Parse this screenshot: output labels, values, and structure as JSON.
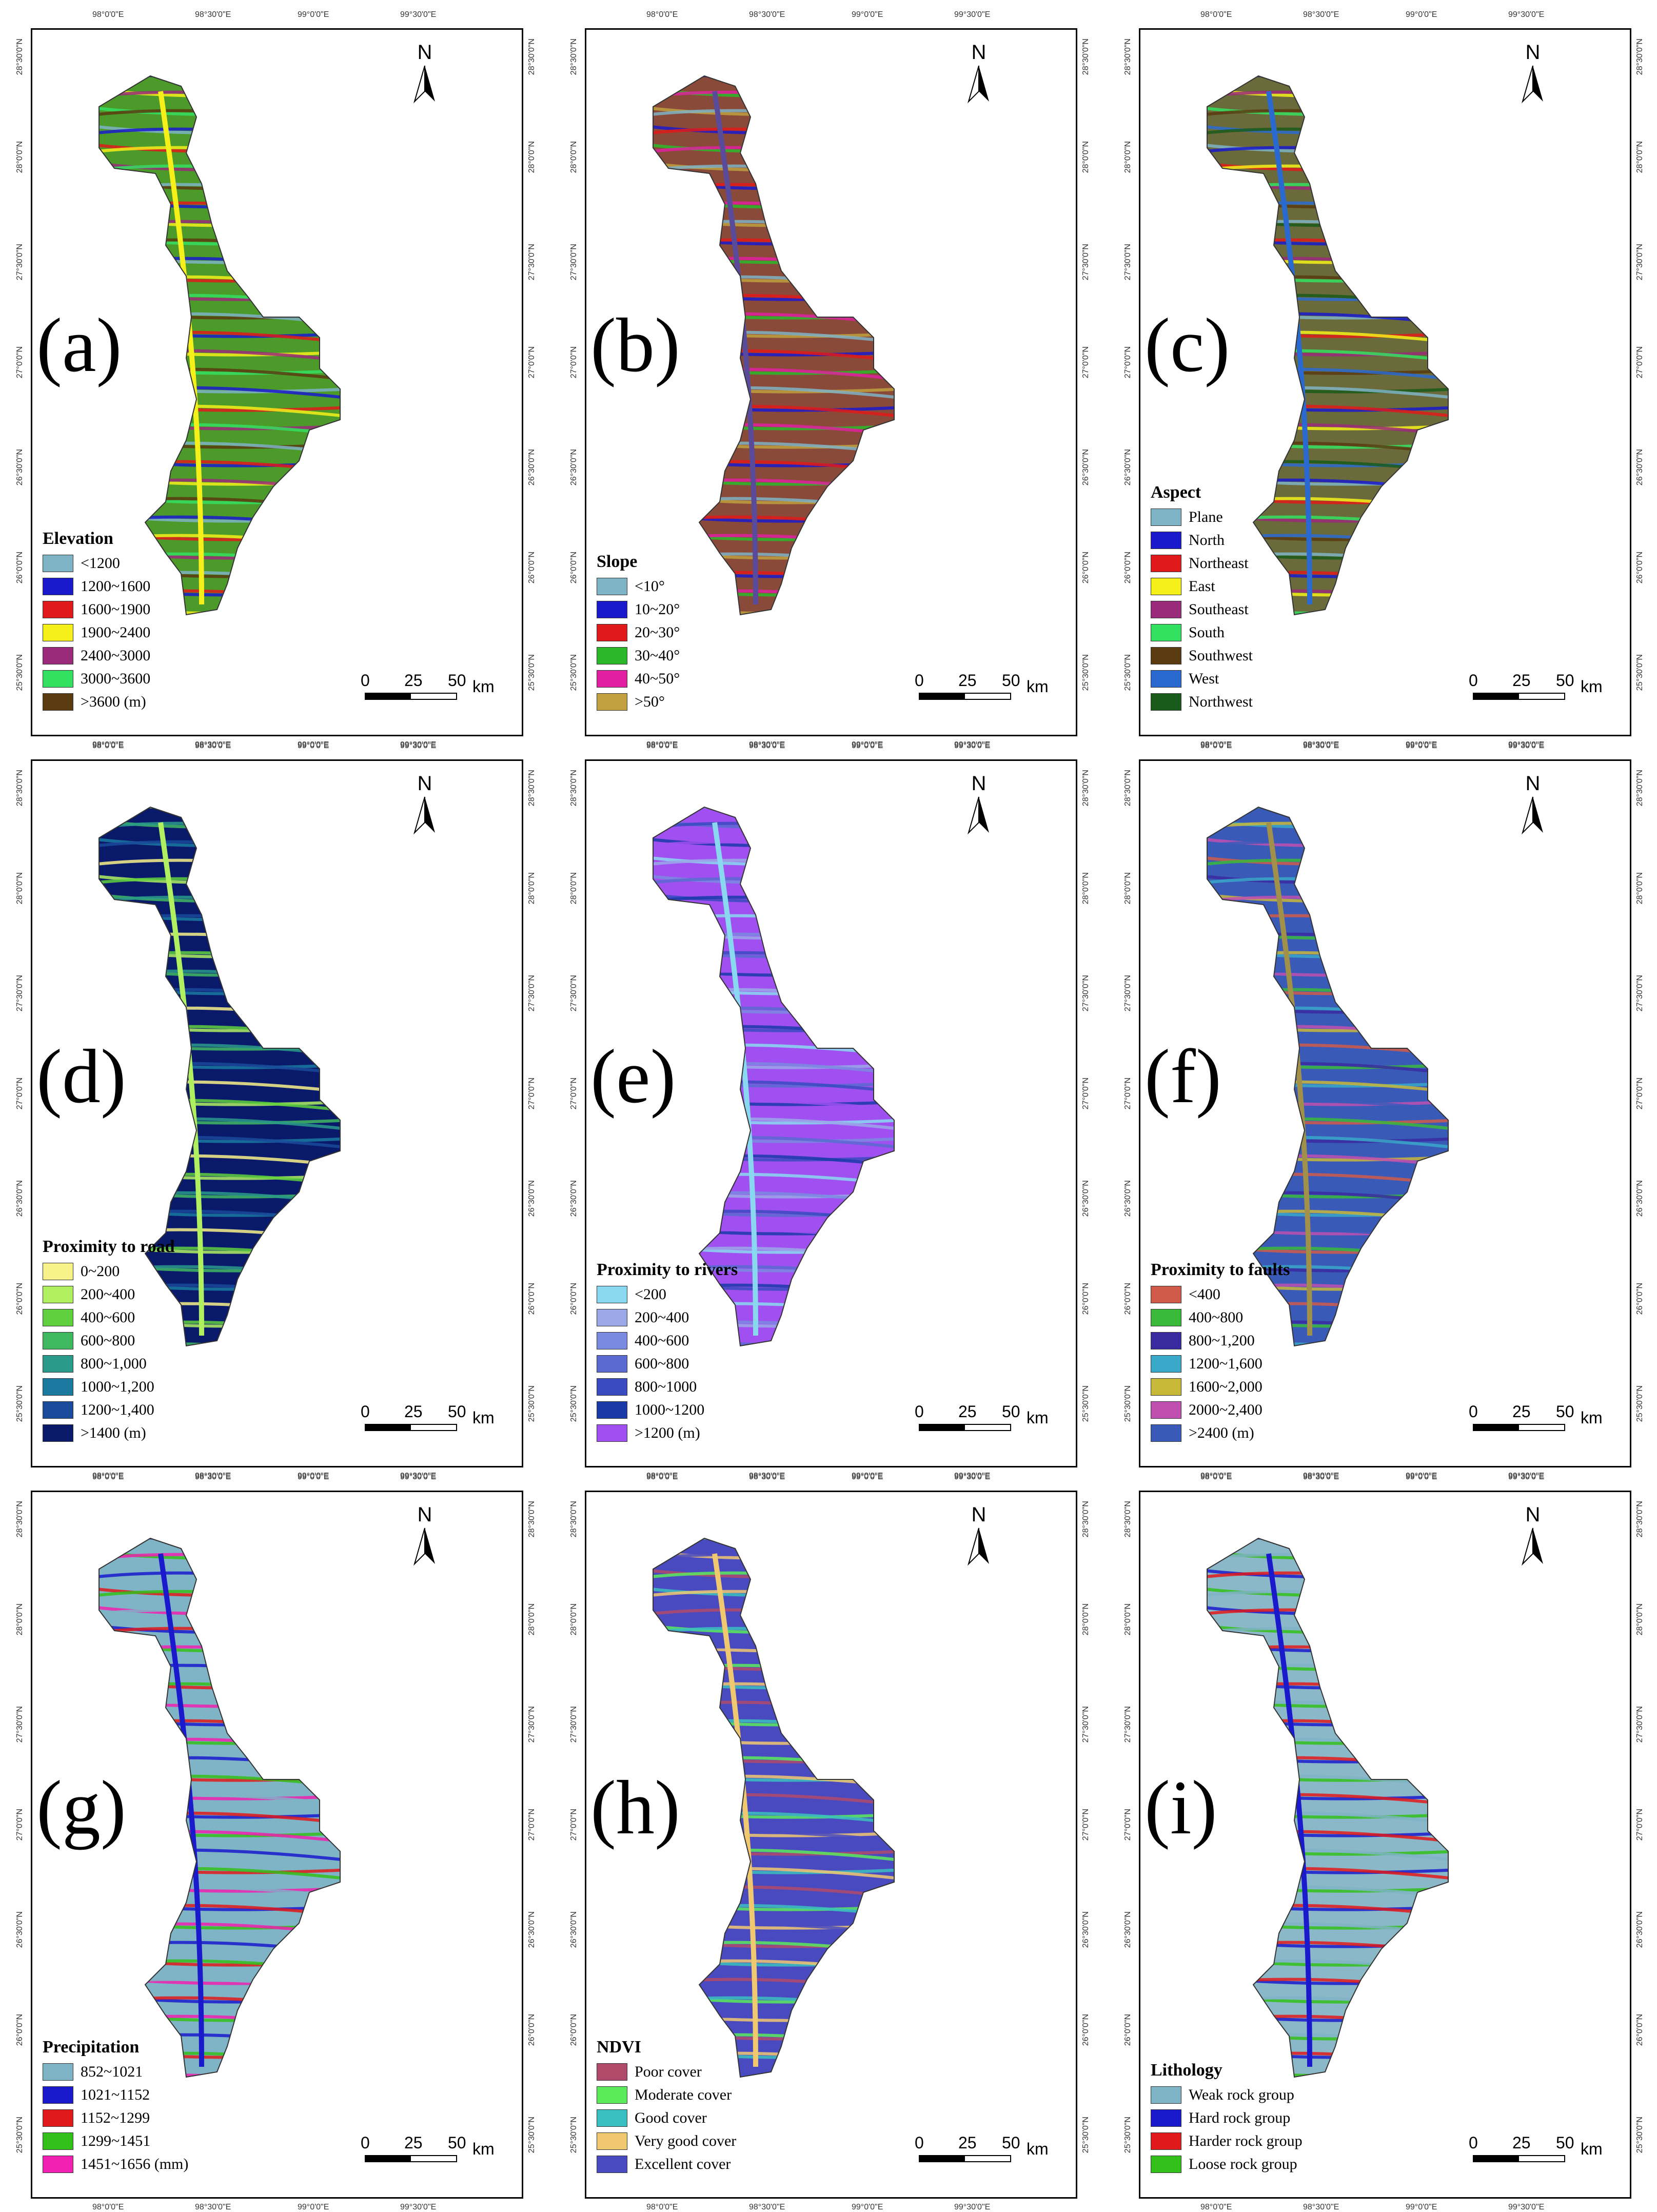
{
  "ticks": {
    "lon": [
      "98°0'0\"E",
      "98°30'0\"E",
      "99°0'0\"E",
      "99°30'0\"E"
    ],
    "lat": [
      "28°30'0\"N",
      "28°0'0\"N",
      "27°30'0\"N",
      "27°0'0\"N",
      "26°30'0\"N",
      "26°0'0\"N",
      "25°30'0\"N"
    ]
  },
  "north_label": "N",
  "scale": {
    "zero": "0",
    "mid": "25",
    "max": "50",
    "unit": "km"
  },
  "panels": [
    {
      "label": "(a)",
      "legend_title": "Elevation",
      "classes": [
        {
          "label": "<1200",
          "color": "#7fb3c6"
        },
        {
          "label": "1200~1600",
          "color": "#1a1acc"
        },
        {
          "label": "1600~1900",
          "color": "#e01a1a"
        },
        {
          "label": "1900~2400",
          "color": "#f5f01a"
        },
        {
          "label": "2400~3000",
          "color": "#9a2a7a"
        },
        {
          "label": "3000~3600",
          "color": "#34e060"
        },
        {
          "label": ">3600 (m)",
          "color": "#5a3a10"
        }
      ],
      "fill": "#4c9a2a",
      "stripe": "#f5f01a"
    },
    {
      "label": "(b)",
      "legend_title": "Slope",
      "classes": [
        {
          "label": "<10°",
          "color": "#7fb3c6"
        },
        {
          "label": "10~20°",
          "color": "#1a1acc"
        },
        {
          "label": "20~30°",
          "color": "#e01a1a"
        },
        {
          "label": "30~40°",
          "color": "#2ab82a"
        },
        {
          "label": "40~50°",
          "color": "#e020a0"
        },
        {
          "label": ">50°",
          "color": "#c0a040"
        }
      ],
      "fill": "#8a4a3a",
      "stripe": "#5a4a9a"
    },
    {
      "label": "(c)",
      "legend_title": "Aspect",
      "classes": [
        {
          "label": "Plane",
          "color": "#7fb3c6"
        },
        {
          "label": "North",
          "color": "#1a1acc"
        },
        {
          "label": "Northeast",
          "color": "#e01a1a"
        },
        {
          "label": "East",
          "color": "#f5f01a"
        },
        {
          "label": "Southeast",
          "color": "#9a2a7a"
        },
        {
          "label": "South",
          "color": "#34e060"
        },
        {
          "label": "Southwest",
          "color": "#5a3a10"
        },
        {
          "label": "West",
          "color": "#2a6ad0"
        },
        {
          "label": "Northwest",
          "color": "#1a5a1a"
        }
      ],
      "fill": "#6a6a3a",
      "stripe": "#2a6ad0"
    },
    {
      "label": "(d)",
      "legend_title": "Proximity to road",
      "classes": [
        {
          "label": "0~200",
          "color": "#f8f28a"
        },
        {
          "label": "200~400",
          "color": "#b0f060"
        },
        {
          "label": "400~600",
          "color": "#60d040"
        },
        {
          "label": "600~800",
          "color": "#40b860"
        },
        {
          "label": "800~1,000",
          "color": "#2a9a8a"
        },
        {
          "label": "1000~1,200",
          "color": "#1a7aa0"
        },
        {
          "label": "1200~1,400",
          "color": "#1a4a9a"
        },
        {
          "label": ">1400 (m)",
          "color": "#0a1a6a"
        }
      ],
      "fill": "#0a1a6a",
      "stripe": "#b0f060"
    },
    {
      "label": "(e)",
      "legend_title": "Proximity to rivers",
      "classes": [
        {
          "label": "<200",
          "color": "#8ad8f0"
        },
        {
          "label": "200~400",
          "color": "#9aa8e8"
        },
        {
          "label": "400~600",
          "color": "#7a8ae0"
        },
        {
          "label": "600~800",
          "color": "#5a6ad0"
        },
        {
          "label": "800~1000",
          "color": "#3a4ac0"
        },
        {
          "label": "1000~1200",
          "color": "#1a3aa8"
        },
        {
          "label": ">1200 (m)",
          "color": "#a050f0"
        }
      ],
      "fill": "#a050f0",
      "stripe": "#8ad8f0"
    },
    {
      "label": "(f)",
      "legend_title": "Proximity to faults",
      "classes": [
        {
          "label": "<400",
          "color": "#d05a4a"
        },
        {
          "label": "400~800",
          "color": "#3ab83a"
        },
        {
          "label": "800~1,200",
          "color": "#3a2aa0"
        },
        {
          "label": "1200~1,600",
          "color": "#3aa8c8"
        },
        {
          "label": "1600~2,000",
          "color": "#c8b83a"
        },
        {
          "label": "2000~2,400",
          "color": "#c050b0"
        },
        {
          "label": ">2400 (m)",
          "color": "#3a5ab8"
        }
      ],
      "fill": "#3a5ab8",
      "stripe": "#a0904a"
    },
    {
      "label": "(g)",
      "legend_title": "Precipitation",
      "classes": [
        {
          "label": "852~1021",
          "color": "#7fb3c6"
        },
        {
          "label": "1021~1152",
          "color": "#1a1acc"
        },
        {
          "label": "1152~1299",
          "color": "#e01a1a"
        },
        {
          "label": "1299~1451",
          "color": "#34c01a"
        },
        {
          "label": "1451~1656 (mm)",
          "color": "#f020b0"
        }
      ],
      "fill": "#7fb3c6",
      "stripe": "#1a1acc"
    },
    {
      "label": "(h)",
      "legend_title": "NDVI",
      "classes": [
        {
          "label": "Poor cover",
          "color": "#b04a6a"
        },
        {
          "label": "Moderate cover",
          "color": "#5aea5a"
        },
        {
          "label": "Good cover",
          "color": "#3ac0c0"
        },
        {
          "label": "Very good cover",
          "color": "#f0c870"
        },
        {
          "label": "Excellent cover",
          "color": "#4a4ac0"
        }
      ],
      "fill": "#4a4ac0",
      "stripe": "#f0c870"
    },
    {
      "label": "(i)",
      "legend_title": "Lithology",
      "classes": [
        {
          "label": "Weak rock group",
          "color": "#7fb3c6"
        },
        {
          "label": "Hard rock group",
          "color": "#1a1acc"
        },
        {
          "label": "Harder rock group",
          "color": "#e01a1a"
        },
        {
          "label": "Loose rock group",
          "color": "#34c01a"
        }
      ],
      "fill": "#8ab8c8",
      "stripe": "#1a1acc"
    }
  ]
}
